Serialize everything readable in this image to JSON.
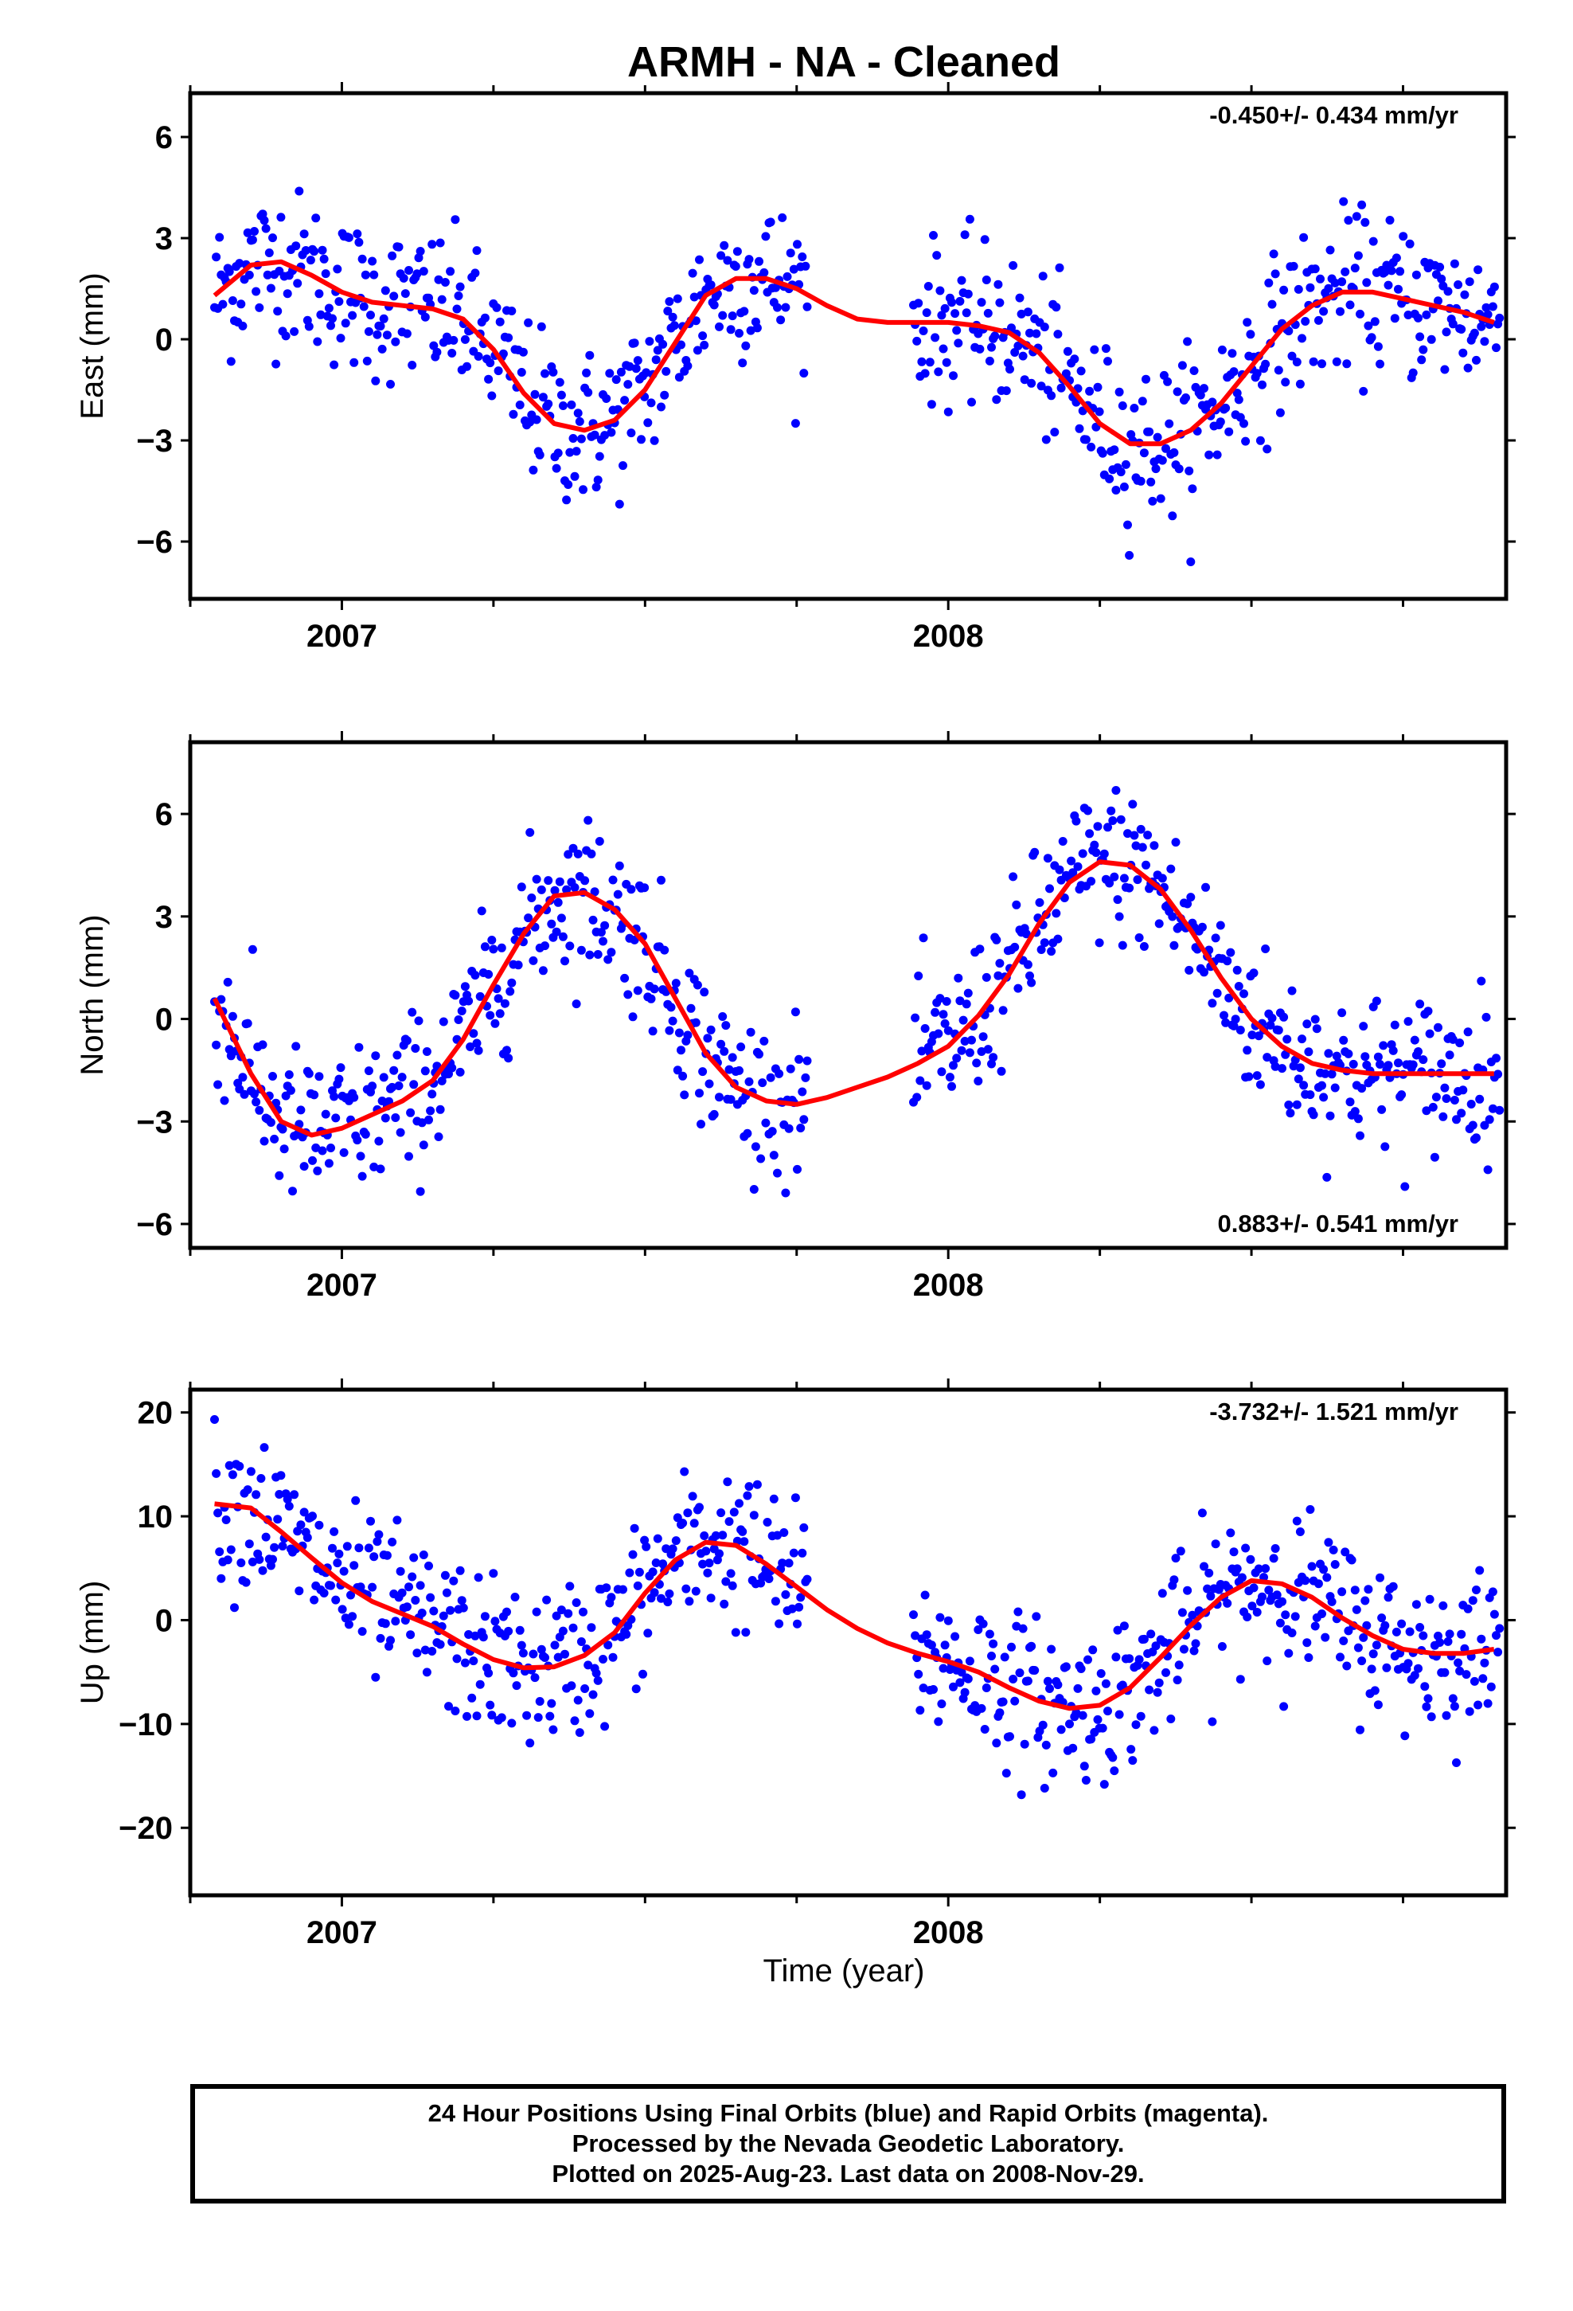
{
  "title": "ARMH  - NA - Cleaned",
  "xlabel": "Time (year)",
  "footer": {
    "line1": "24 Hour Positions Using Final Orbits (blue) and Rapid Orbits (magenta).",
    "line2": "Processed by the Nevada Geodetic Laboratory.",
    "line3": "Plotted on 2025-Aug-23. Last data on 2008-Nov-29."
  },
  "colors": {
    "points": "#0000ff",
    "fit": "#ff0000",
    "axes": "#000000"
  },
  "chart_data": [
    {
      "type": "scatter",
      "ylabel": "East (mm)",
      "rate": "-0.450+/- 0.434 mm/yr",
      "rate_position": "top-right",
      "xlim": [
        2006.75,
        2008.92
      ],
      "ylim": [
        -7.7,
        7.3
      ],
      "x_ticks": [
        2007,
        2008
      ],
      "y_ticks": [
        -6,
        -3,
        0,
        3,
        6
      ],
      "y_tick_labels": [
        "−6",
        "−3",
        "0",
        "3",
        "6"
      ],
      "fit": {
        "x": [
          2006.79,
          2006.85,
          2006.9,
          2006.95,
          2007.0,
          2007.05,
          2007.1,
          2007.15,
          2007.2,
          2007.25,
          2007.3,
          2007.35,
          2007.4,
          2007.45,
          2007.5,
          2007.55,
          2007.6,
          2007.65,
          2007.7,
          2007.75,
          2007.8,
          2007.85,
          2007.9,
          2007.95,
          2008.0,
          2008.05,
          2008.1,
          2008.15,
          2008.2,
          2008.25,
          2008.3,
          2008.35,
          2008.4,
          2008.45,
          2008.5,
          2008.55,
          2008.6,
          2008.65,
          2008.7,
          2008.75,
          2008.8,
          2008.85,
          2008.9
        ],
        "y": [
          1.3,
          2.2,
          2.3,
          1.9,
          1.4,
          1.1,
          1.0,
          0.9,
          0.6,
          -0.3,
          -1.6,
          -2.5,
          -2.7,
          -2.4,
          -1.5,
          -0.1,
          1.3,
          1.8,
          1.8,
          1.5,
          1.0,
          0.6,
          0.5,
          0.5,
          0.5,
          0.4,
          0.2,
          -0.4,
          -1.4,
          -2.5,
          -3.1,
          -3.1,
          -2.7,
          -1.9,
          -0.8,
          0.3,
          1.0,
          1.4,
          1.4,
          1.2,
          1.0,
          0.8,
          0.5
        ]
      },
      "points": {
        "x_range": [
          2006.79,
          2008.91
        ],
        "gap": [
          2007.77,
          2007.94
        ]
      }
    },
    {
      "type": "scatter",
      "ylabel": "North (mm)",
      "rate": "0.883+/- 0.541 mm/yr",
      "rate_position": "bottom-right",
      "xlim": [
        2006.75,
        2008.92
      ],
      "ylim": [
        -6.7,
        8.1
      ],
      "x_ticks": [
        2007,
        2008
      ],
      "y_ticks": [
        -6,
        -3,
        0,
        3,
        6
      ],
      "y_tick_labels": [
        "−6",
        "−3",
        "0",
        "3",
        "6"
      ],
      "fit": {
        "x": [
          2006.79,
          2006.85,
          2006.9,
          2006.95,
          2007.0,
          2007.05,
          2007.1,
          2007.15,
          2007.2,
          2007.25,
          2007.3,
          2007.35,
          2007.4,
          2007.45,
          2007.5,
          2007.55,
          2007.6,
          2007.65,
          2007.7,
          2007.75,
          2007.8,
          2007.85,
          2007.9,
          2007.95,
          2008.0,
          2008.05,
          2008.1,
          2008.15,
          2008.2,
          2008.25,
          2008.3,
          2008.35,
          2008.4,
          2008.45,
          2008.5,
          2008.55,
          2008.6,
          2008.65,
          2008.7,
          2008.75,
          2008.8,
          2008.85,
          2008.9
        ],
        "y": [
          0.6,
          -1.6,
          -3.0,
          -3.4,
          -3.2,
          -2.8,
          -2.4,
          -1.8,
          -0.6,
          1.0,
          2.5,
          3.6,
          3.7,
          3.2,
          2.2,
          0.6,
          -1.0,
          -2.0,
          -2.4,
          -2.5,
          -2.3,
          -2.0,
          -1.7,
          -1.3,
          -0.8,
          0.1,
          1.3,
          2.8,
          4.0,
          4.6,
          4.5,
          3.8,
          2.6,
          1.2,
          0.0,
          -0.8,
          -1.3,
          -1.5,
          -1.6,
          -1.6,
          -1.6,
          -1.6,
          -1.6
        ]
      },
      "points": {
        "x_range": [
          2006.79,
          2008.91
        ],
        "gap": [
          2007.77,
          2007.94
        ]
      }
    },
    {
      "type": "scatter",
      "ylabel": "Up (mm)",
      "rate": "-3.732+/- 1.521 mm/yr",
      "rate_position": "top-right",
      "xlim": [
        2006.75,
        2008.92
      ],
      "ylim": [
        -26.5,
        22.2
      ],
      "x_ticks": [
        2007,
        2008
      ],
      "y_ticks": [
        -20,
        -10,
        0,
        10,
        20
      ],
      "y_tick_labels": [
        "−20",
        "−10",
        "0",
        "10",
        "20"
      ],
      "fit": {
        "x": [
          2006.79,
          2006.85,
          2006.9,
          2006.95,
          2007.0,
          2007.05,
          2007.1,
          2007.15,
          2007.2,
          2007.25,
          2007.3,
          2007.35,
          2007.4,
          2007.45,
          2007.5,
          2007.55,
          2007.6,
          2007.65,
          2007.7,
          2007.75,
          2007.8,
          2007.85,
          2007.9,
          2007.95,
          2008.0,
          2008.05,
          2008.1,
          2008.15,
          2008.2,
          2008.25,
          2008.3,
          2008.35,
          2008.4,
          2008.45,
          2008.5,
          2008.55,
          2008.6,
          2008.65,
          2008.7,
          2008.75,
          2008.8,
          2008.85,
          2008.9
        ],
        "y": [
          11.2,
          10.8,
          8.5,
          6.0,
          3.6,
          1.8,
          0.6,
          -0.6,
          -2.3,
          -3.8,
          -4.6,
          -4.5,
          -3.4,
          -1.2,
          2.6,
          5.8,
          7.5,
          7.2,
          5.4,
          3.2,
          1.0,
          -0.8,
          -2.2,
          -3.2,
          -4.0,
          -5.0,
          -6.5,
          -7.8,
          -8.5,
          -8.2,
          -6.5,
          -3.6,
          -0.5,
          2.2,
          3.8,
          3.5,
          2.2,
          0.2,
          -1.5,
          -2.8,
          -3.2,
          -3.2,
          -2.8
        ]
      },
      "points": {
        "x_range": [
          2006.79,
          2008.91
        ],
        "gap": [
          2007.77,
          2007.94
        ]
      }
    }
  ]
}
